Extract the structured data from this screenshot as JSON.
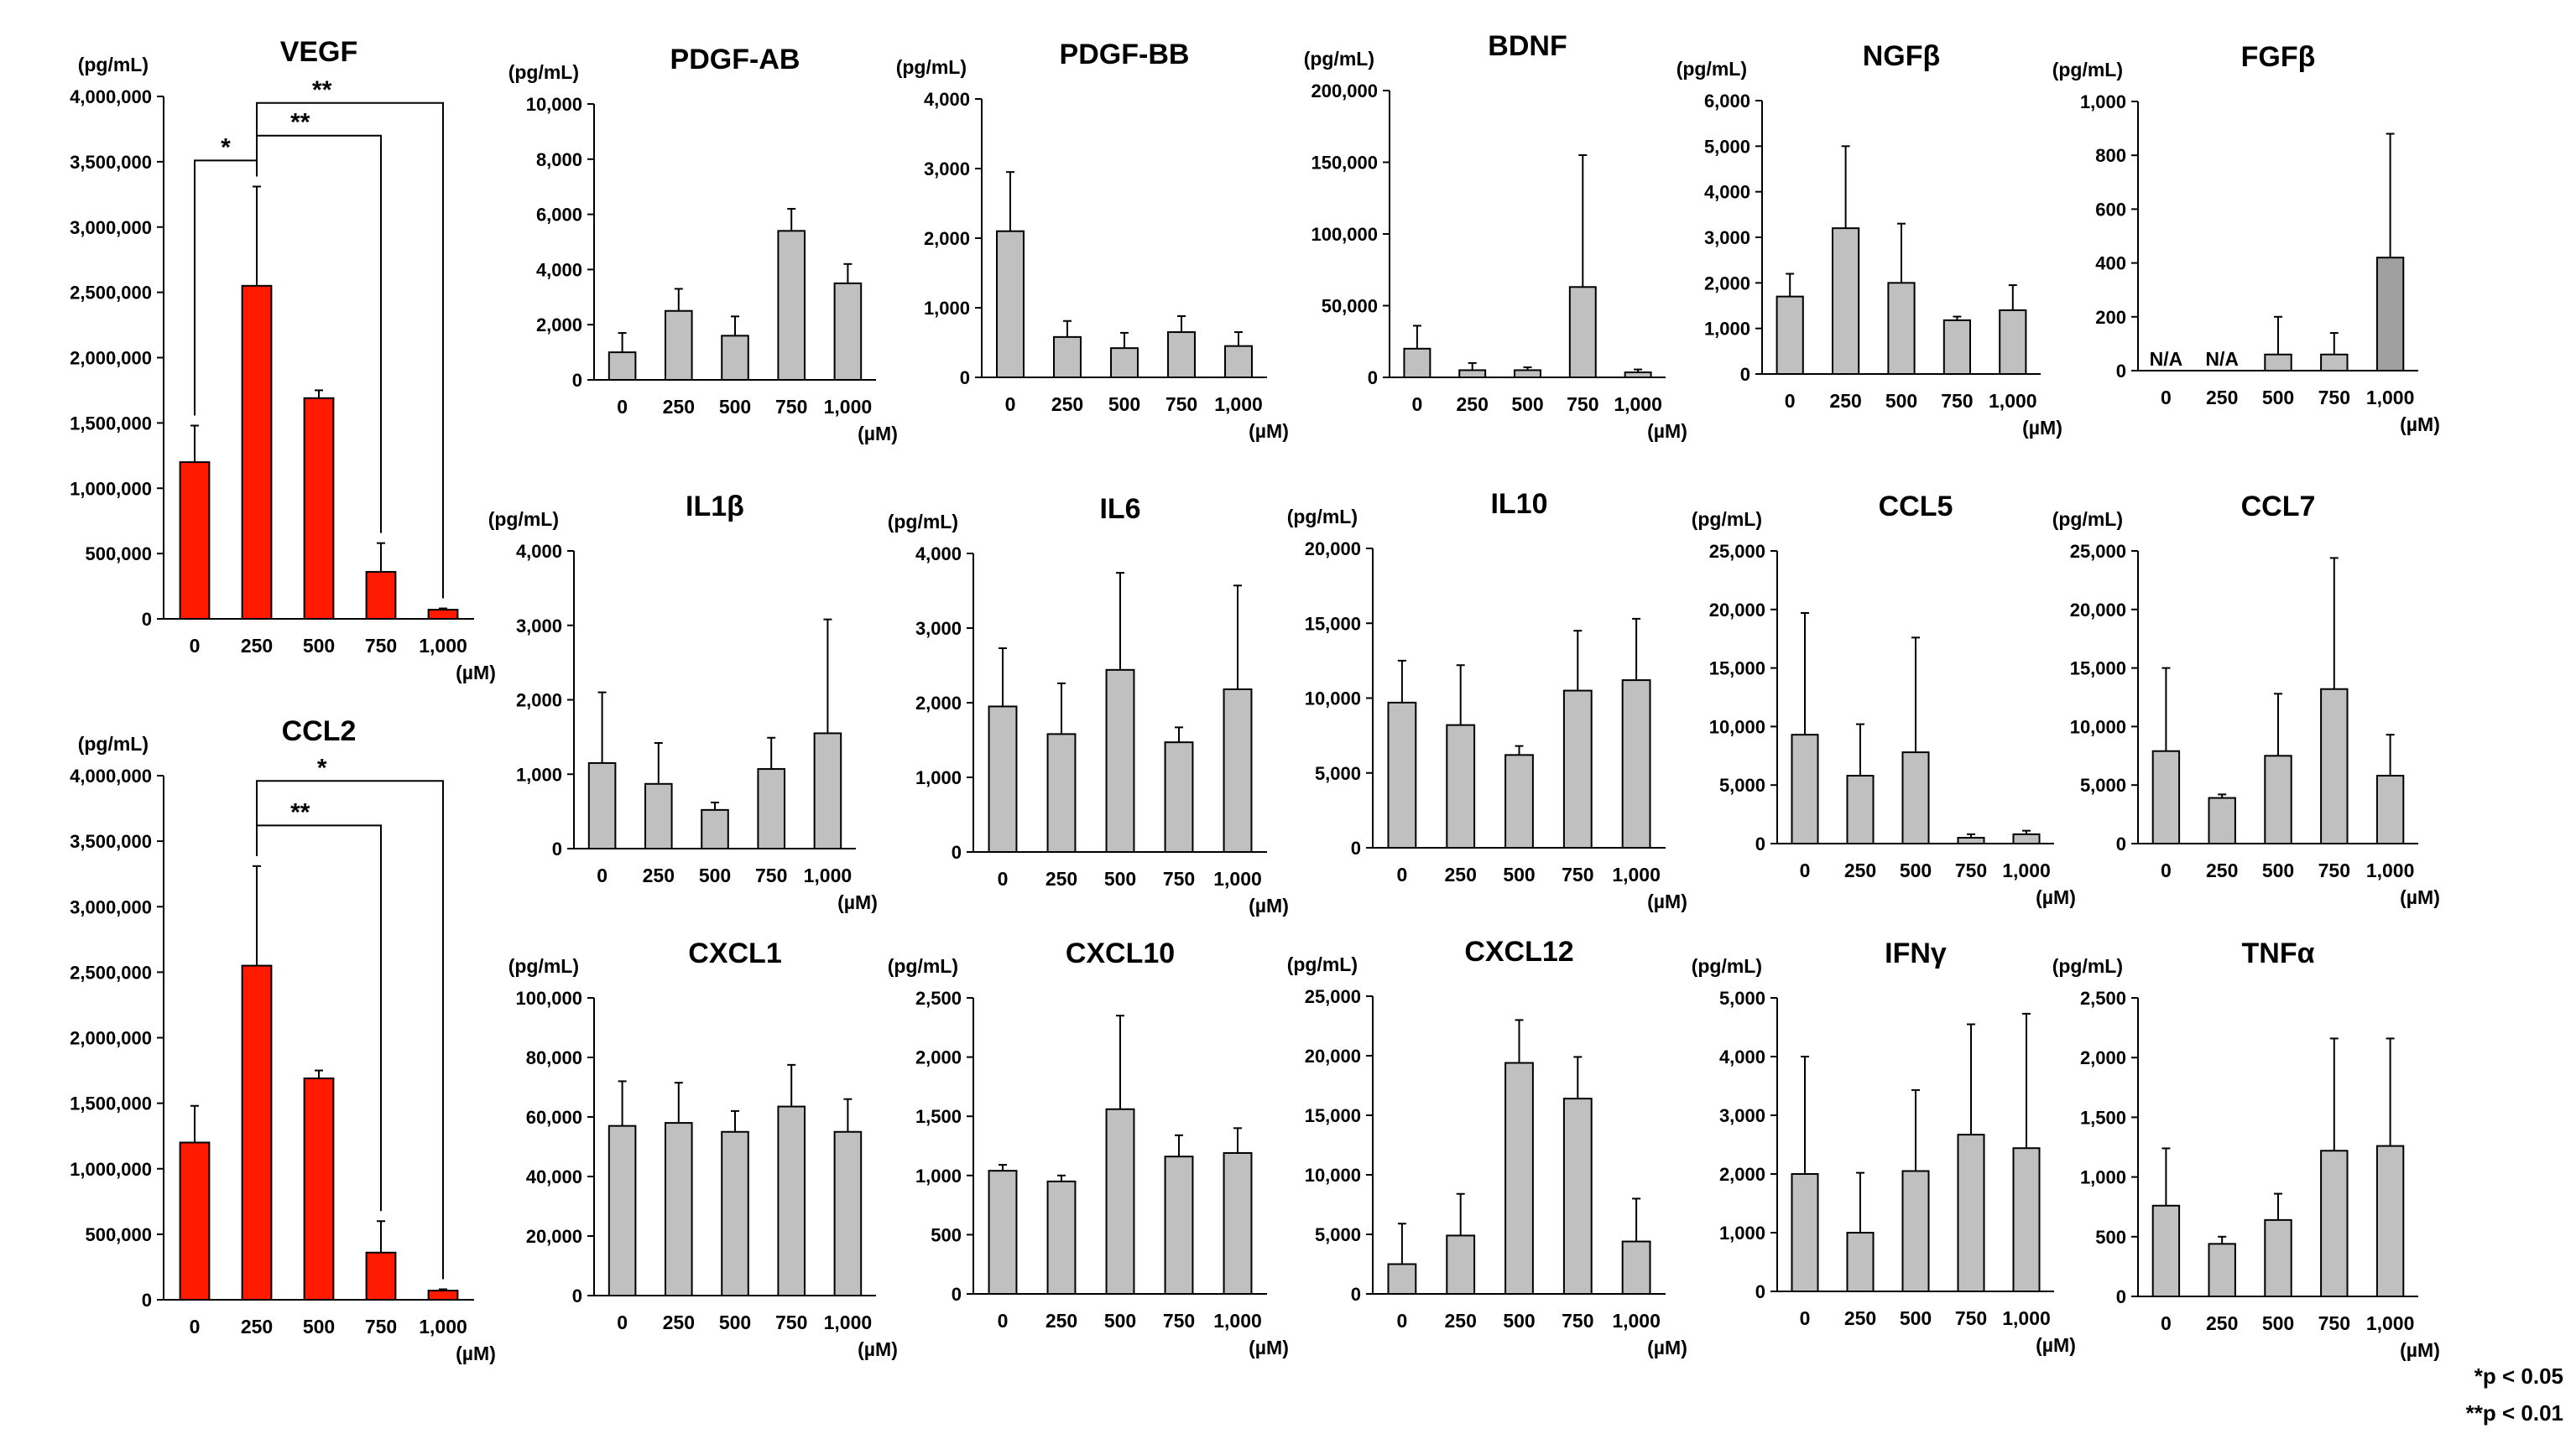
{
  "chart_data": [
    {
      "id": "VEGF",
      "type": "bar",
      "title": "VEGF",
      "ylabel": "(pg/mL)",
      "x_unit": "(µM)",
      "categories": [
        "0",
        "250",
        "500",
        "750",
        "1,000"
      ],
      "values": [
        1200000,
        2550000,
        1690000,
        360000,
        70000
      ],
      "errors": [
        280000,
        760000,
        60000,
        220000,
        10000
      ],
      "yticks": [
        0,
        500000,
        1000000,
        1500000,
        2000000,
        2500000,
        3000000,
        3500000,
        4000000
      ],
      "ytick_labels": [
        "0",
        "500,000",
        "1,000,000",
        "1,500,000",
        "2,000,000",
        "2,500,000",
        "3,000,000",
        "3,500,000",
        "4,000,000"
      ],
      "ylim": [
        0,
        4000000
      ],
      "bar_color": "#ff1a00",
      "significance": [
        {
          "from": 0,
          "to": 1,
          "label": "*",
          "y": 3510000
        },
        {
          "from": 1,
          "to": 3,
          "label": "**",
          "y": 3700000
        },
        {
          "from": 1,
          "to": 4,
          "label": "**",
          "y": 3950000
        }
      ]
    },
    {
      "id": "CCL2",
      "type": "bar",
      "title": "CCL2",
      "ylabel": "(pg/mL)",
      "x_unit": "(µM)",
      "categories": [
        "0",
        "250",
        "500",
        "750",
        "1,000"
      ],
      "values": [
        1200000,
        2550000,
        1690000,
        360000,
        70000
      ],
      "errors": [
        280000,
        760000,
        60000,
        240000,
        10000
      ],
      "yticks": [
        0,
        500000,
        1000000,
        1500000,
        2000000,
        2500000,
        3000000,
        3500000,
        4000000
      ],
      "ytick_labels": [
        "0",
        "500,000",
        "1,000,000",
        "1,500,000",
        "2,000,000",
        "2,500,000",
        "3,000,000",
        "3,500,000",
        "4,000,000"
      ],
      "ylim": [
        0,
        4000000
      ],
      "bar_color": "#ff1a00",
      "significance": [
        {
          "from": 1,
          "to": 3,
          "label": "**",
          "y": 3620000
        },
        {
          "from": 1,
          "to": 4,
          "label": "*",
          "y": 3960000
        }
      ]
    },
    {
      "id": "PDGF-AB",
      "type": "bar",
      "title": "PDGF-AB",
      "ylabel": "(pg/mL)",
      "x_unit": "(µM)",
      "categories": [
        "0",
        "250",
        "500",
        "750",
        "1,000"
      ],
      "values": [
        1000,
        2500,
        1600,
        5400,
        3500
      ],
      "errors": [
        700,
        800,
        700,
        800,
        700
      ],
      "yticks": [
        0,
        2000,
        4000,
        6000,
        8000,
        10000
      ],
      "ytick_labels": [
        "0",
        "2,000",
        "4,000",
        "6,000",
        "8,000",
        "10,000"
      ],
      "ylim": [
        0,
        10000
      ],
      "bar_color": "#c0c0c0"
    },
    {
      "id": "PDGF-BB",
      "type": "bar",
      "title": "PDGF-BB",
      "ylabel": "(pg/mL)",
      "x_unit": "(µM)",
      "categories": [
        "0",
        "250",
        "500",
        "750",
        "1,000"
      ],
      "values": [
        2100,
        580,
        420,
        650,
        450
      ],
      "errors": [
        850,
        230,
        220,
        230,
        200
      ],
      "yticks": [
        0,
        1000,
        2000,
        3000,
        4000
      ],
      "ytick_labels": [
        "0",
        "1,000",
        "2,000",
        "3,000",
        "4,000"
      ],
      "ylim": [
        0,
        4000
      ],
      "bar_color": "#c0c0c0"
    },
    {
      "id": "BDNF",
      "type": "bar",
      "title": "BDNF",
      "ylabel": "(pg/mL)",
      "x_unit": "(µM)",
      "categories": [
        "0",
        "250",
        "500",
        "750",
        "1,000"
      ],
      "values": [
        20000,
        5000,
        5000,
        63000,
        3500
      ],
      "errors": [
        16000,
        5000,
        2000,
        92000,
        2000
      ],
      "yticks": [
        0,
        50000,
        100000,
        150000,
        200000
      ],
      "ytick_labels": [
        "0",
        "50,000",
        "100,000",
        "150,000",
        "200,000"
      ],
      "ylim": [
        0,
        200000
      ],
      "bar_color": "#c0c0c0"
    },
    {
      "id": "NGFb",
      "type": "bar",
      "title": "NGFβ",
      "ylabel": "(pg/mL)",
      "x_unit": "(µM)",
      "categories": [
        "0",
        "250",
        "500",
        "750",
        "1,000"
      ],
      "values": [
        1700,
        3200,
        2000,
        1180,
        1400
      ],
      "errors": [
        500,
        1800,
        1300,
        80,
        550
      ],
      "yticks": [
        0,
        1000,
        2000,
        3000,
        4000,
        5000,
        6000
      ],
      "ytick_labels": [
        "0",
        "1,000",
        "2,000",
        "3,000",
        "4,000",
        "5,000",
        "6,000"
      ],
      "ylim": [
        0,
        6000
      ],
      "bar_color": "#c0c0c0"
    },
    {
      "id": "FGFb",
      "type": "bar",
      "title": "FGFβ",
      "ylabel": "(pg/mL)",
      "x_unit": "(µM)",
      "categories": [
        "0",
        "250",
        "500",
        "750",
        "1,000"
      ],
      "values": [
        null,
        null,
        60,
        60,
        420
      ],
      "errors": [
        null,
        null,
        140,
        80,
        460
      ],
      "na_label": "N/A",
      "yticks": [
        0,
        200,
        400,
        600,
        800,
        1000
      ],
      "ytick_labels": [
        "0",
        "200",
        "400",
        "600",
        "800",
        "1,000"
      ],
      "ylim": [
        0,
        1000
      ],
      "bar_color": "#c0c0c0",
      "highlight_color": "#a0a0a0"
    },
    {
      "id": "IL1b",
      "type": "bar",
      "title": "IL1β",
      "ylabel": "(pg/mL)",
      "x_unit": "(µM)",
      "categories": [
        "0",
        "250",
        "500",
        "750",
        "1,000"
      ],
      "values": [
        1150,
        870,
        520,
        1070,
        1550
      ],
      "errors": [
        950,
        550,
        100,
        420,
        1530
      ],
      "yticks": [
        0,
        1000,
        2000,
        3000,
        4000
      ],
      "ytick_labels": [
        "0",
        "1,000",
        "2,000",
        "3,000",
        "4,000"
      ],
      "ylim": [
        0,
        4000
      ],
      "bar_color": "#c0c0c0"
    },
    {
      "id": "IL6",
      "type": "bar",
      "title": "IL6",
      "ylabel": "(pg/mL)",
      "x_unit": "(µM)",
      "categories": [
        "0",
        "250",
        "500",
        "750",
        "1,000"
      ],
      "values": [
        1950,
        1580,
        2440,
        1470,
        2180
      ],
      "errors": [
        780,
        680,
        1300,
        200,
        1390
      ],
      "yticks": [
        0,
        1000,
        2000,
        3000,
        4000
      ],
      "ytick_labels": [
        "0",
        "1,000",
        "2,000",
        "3,000",
        "4,000"
      ],
      "ylim": [
        0,
        4000
      ],
      "bar_color": "#c0c0c0"
    },
    {
      "id": "IL10",
      "type": "bar",
      "title": "IL10",
      "ylabel": "(pg/mL)",
      "x_unit": "(µM)",
      "categories": [
        "0",
        "250",
        "500",
        "750",
        "1,000"
      ],
      "values": [
        9700,
        8200,
        6200,
        10500,
        11200
      ],
      "errors": [
        2800,
        4000,
        600,
        4000,
        4100
      ],
      "yticks": [
        0,
        5000,
        10000,
        15000,
        20000
      ],
      "ytick_labels": [
        "0",
        "5,000",
        "10,000",
        "15,000",
        "20,000"
      ],
      "ylim": [
        0,
        20000
      ],
      "bar_color": "#c0c0c0"
    },
    {
      "id": "CCL5",
      "type": "bar",
      "title": "CCL5",
      "ylabel": "(pg/mL)",
      "x_unit": "(µM)",
      "categories": [
        "0",
        "250",
        "500",
        "750",
        "1,000"
      ],
      "values": [
        9300,
        5800,
        7800,
        500,
        800
      ],
      "errors": [
        10400,
        4400,
        9800,
        300,
        300
      ],
      "yticks": [
        0,
        5000,
        10000,
        15000,
        20000,
        25000
      ],
      "ytick_labels": [
        "0",
        "5,000",
        "10,000",
        "15,000",
        "20,000",
        "25,000"
      ],
      "ylim": [
        0,
        25000
      ],
      "bar_color": "#c0c0c0"
    },
    {
      "id": "CCL7",
      "type": "bar",
      "title": "CCL7",
      "ylabel": "(pg/mL)",
      "x_unit": "(µM)",
      "categories": [
        "0",
        "250",
        "500",
        "750",
        "1,000"
      ],
      "values": [
        7900,
        3900,
        7500,
        13200,
        5800
      ],
      "errors": [
        7100,
        300,
        5300,
        11200,
        3500
      ],
      "yticks": [
        0,
        5000,
        10000,
        15000,
        20000,
        25000
      ],
      "ytick_labels": [
        "0",
        "5,000",
        "10,000",
        "15,000",
        "20,000",
        "25,000"
      ],
      "ylim": [
        0,
        25000
      ],
      "bar_color": "#c0c0c0"
    },
    {
      "id": "CXCL1",
      "type": "bar",
      "title": "CXCL1",
      "ylabel": "(pg/mL)",
      "x_unit": "(µM)",
      "categories": [
        "0",
        "250",
        "500",
        "750",
        "1,000"
      ],
      "values": [
        57000,
        58000,
        55000,
        63500,
        55000
      ],
      "errors": [
        15000,
        13500,
        7000,
        14000,
        11000
      ],
      "yticks": [
        0,
        20000,
        40000,
        60000,
        80000,
        100000
      ],
      "ytick_labels": [
        "0",
        "20,000",
        "40,000",
        "60,000",
        "80,000",
        "100,000"
      ],
      "ylim": [
        0,
        100000
      ],
      "bar_color": "#c0c0c0"
    },
    {
      "id": "CXCL10",
      "type": "bar",
      "title": "CXCL10",
      "ylabel": "(pg/mL)",
      "x_unit": "(µM)",
      "categories": [
        "0",
        "250",
        "500",
        "750",
        "1,000"
      ],
      "values": [
        1040,
        950,
        1560,
        1160,
        1190
      ],
      "errors": [
        50,
        50,
        790,
        180,
        210
      ],
      "yticks": [
        0,
        500,
        1000,
        1500,
        2000,
        2500
      ],
      "ytick_labels": [
        "0",
        "500",
        "1,000",
        "1,500",
        "2,000",
        "2,500"
      ],
      "ylim": [
        0,
        2500
      ],
      "bar_color": "#c0c0c0"
    },
    {
      "id": "CXCL12",
      "type": "bar",
      "title": "CXCL12",
      "ylabel": "(pg/mL)",
      "x_unit": "(µM)",
      "categories": [
        "0",
        "250",
        "500",
        "750",
        "1,000"
      ],
      "values": [
        2500,
        4900,
        19400,
        16400,
        4400
      ],
      "errors": [
        3400,
        3500,
        3600,
        3500,
        3600
      ],
      "yticks": [
        0,
        5000,
        10000,
        15000,
        20000,
        25000
      ],
      "ytick_labels": [
        "0",
        "5,000",
        "10,000",
        "15,000",
        "20,000",
        "25,000"
      ],
      "ylim": [
        0,
        25000
      ],
      "bar_color": "#c0c0c0"
    },
    {
      "id": "IFNg",
      "type": "bar",
      "title": "IFNγ",
      "ylabel": "(pg/mL)",
      "x_unit": "(µM)",
      "categories": [
        "0",
        "250",
        "500",
        "750",
        "1,000"
      ],
      "values": [
        2000,
        1000,
        2050,
        2670,
        2440
      ],
      "errors": [
        2000,
        1020,
        1380,
        1880,
        2290
      ],
      "yticks": [
        0,
        1000,
        2000,
        3000,
        4000,
        5000
      ],
      "ytick_labels": [
        "0",
        "1,000",
        "2,000",
        "3,000",
        "4,000",
        "5,000"
      ],
      "ylim": [
        0,
        5000
      ],
      "bar_color": "#c0c0c0"
    },
    {
      "id": "TNFa",
      "type": "bar",
      "title": "TNFα",
      "ylabel": "(pg/mL)",
      "x_unit": "(µM)",
      "categories": [
        "0",
        "250",
        "500",
        "750",
        "1,000"
      ],
      "values": [
        760,
        440,
        640,
        1220,
        1260
      ],
      "errors": [
        480,
        60,
        220,
        940,
        900
      ],
      "yticks": [
        0,
        500,
        1000,
        1500,
        2000,
        2500
      ],
      "ytick_labels": [
        "0",
        "500",
        "1,000",
        "1,500",
        "2,000",
        "2,500"
      ],
      "ylim": [
        0,
        2500
      ],
      "bar_color": "#c0c0c0"
    }
  ],
  "legend": {
    "p05": "*p < 0.05",
    "p01": "**p < 0.01"
  }
}
